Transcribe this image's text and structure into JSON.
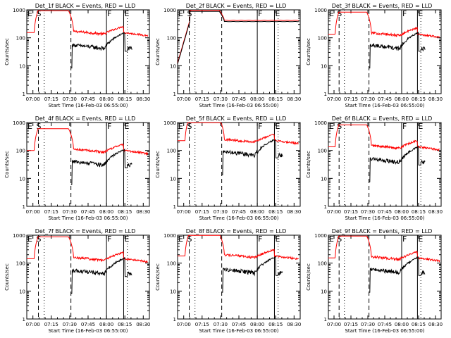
{
  "chart_data": [
    {
      "type": "line",
      "title": "Det_1f BLACK = Events, RED = LLD",
      "xlabel": "Start Time (16-Feb-03 06:55:00)",
      "ylabel": "Counts/sec",
      "yscale": "log",
      "ylim": [
        1,
        1000
      ],
      "x_ticks": [
        "07:00",
        "07:15",
        "07:30",
        "07:45",
        "08:00",
        "08:15",
        "08:30"
      ],
      "y_ticks": [
        "1",
        "10",
        "100",
        "1000"
      ],
      "flags": {
        "E": "E",
        "S": "S",
        "F": "F"
      },
      "series": [
        {
          "name": "LLD",
          "color": "#ff0000",
          "profile": "A",
          "base": 170
        },
        {
          "name": "Events",
          "color": "#000000",
          "profile": "B",
          "base": 55
        }
      ]
    },
    {
      "type": "line",
      "title": "Det_2f BLACK = Events, RED = LLD",
      "xlabel": "Start Time (16-Feb-03 06:55:00)",
      "ylabel": "Counts/sec",
      "yscale": "log",
      "ylim": [
        1,
        1000
      ],
      "x_ticks": [
        "07:00",
        "07:15",
        "07:30",
        "07:45",
        "08:00",
        "08:15",
        "08:30"
      ],
      "y_ticks": [
        "1",
        "10",
        "100",
        "1000"
      ],
      "flags": {
        "E": "E",
        "S": "S",
        "F": "F"
      },
      "series": [
        {
          "name": "LLD",
          "color": "#ff0000",
          "profile": "flat",
          "base": 420
        },
        {
          "name": "Events",
          "color": "#000000",
          "profile": "flat",
          "base": 380
        }
      ]
    },
    {
      "type": "line",
      "title": "Det_3f BLACK = Events, RED = LLD",
      "xlabel": "Start Time (16-Feb-03 06:55:00)",
      "ylabel": "Counts/sec",
      "yscale": "log",
      "ylim": [
        1,
        1000
      ],
      "x_ticks": [
        "07:00",
        "07:15",
        "07:30",
        "07:45",
        "08:00",
        "08:15",
        "08:30"
      ],
      "y_ticks": [
        "1",
        "10",
        "100",
        "1000"
      ],
      "flags": {
        "E": "E",
        "S": "S",
        "F": "F"
      },
      "series": [
        {
          "name": "LLD",
          "color": "#ff0000",
          "profile": "A",
          "base": 150
        },
        {
          "name": "Events",
          "color": "#000000",
          "profile": "B",
          "base": 55
        }
      ]
    },
    {
      "type": "line",
      "title": "Det_4f BLACK = Events, RED = LLD",
      "xlabel": "Start Time (16-Feb-03 06:55:00)",
      "ylabel": "Counts/sec",
      "yscale": "log",
      "ylim": [
        1,
        1000
      ],
      "x_ticks": [
        "07:00",
        "07:15",
        "07:30",
        "07:45",
        "08:00",
        "08:15",
        "08:30"
      ],
      "y_ticks": [
        "1",
        "10",
        "100",
        "1000"
      ],
      "flags": {
        "E": "E",
        "S": "S",
        "F": "F"
      },
      "series": [
        {
          "name": "LLD",
          "color": "#ff0000",
          "profile": "A",
          "base": 110
        },
        {
          "name": "Events",
          "color": "#000000",
          "profile": "B",
          "base": 40
        }
      ]
    },
    {
      "type": "line",
      "title": "Det_5f BLACK = Events, RED = LLD",
      "xlabel": "Start Time (16-Feb-03 06:55:00)",
      "ylabel": "Counts/sec",
      "yscale": "log",
      "ylim": [
        1,
        1000
      ],
      "x_ticks": [
        "07:00",
        "07:15",
        "07:30",
        "07:45",
        "08:00",
        "08:15",
        "08:30"
      ],
      "y_ticks": [
        "1",
        "10",
        "100",
        "1000"
      ],
      "flags": {
        "E": "E",
        "S": "S",
        "F": "F"
      },
      "series": [
        {
          "name": "LLD",
          "color": "#ff0000",
          "profile": "A",
          "base": 250
        },
        {
          "name": "Events",
          "color": "#000000",
          "profile": "B",
          "base": 90
        }
      ]
    },
    {
      "type": "line",
      "title": "Det_6f BLACK = Events, RED = LLD",
      "xlabel": "Start Time (16-Feb-03 06:55:00)",
      "ylabel": "Counts/sec",
      "yscale": "log",
      "ylim": [
        1,
        1000
      ],
      "x_ticks": [
        "07:00",
        "07:15",
        "07:30",
        "07:45",
        "08:00",
        "08:15",
        "08:30"
      ],
      "y_ticks": [
        "1",
        "10",
        "100",
        "1000"
      ],
      "flags": {
        "E": "E",
        "S": "S",
        "F": "F"
      },
      "series": [
        {
          "name": "LLD",
          "color": "#ff0000",
          "profile": "A",
          "base": 150
        },
        {
          "name": "Events",
          "color": "#000000",
          "profile": "B",
          "base": 50
        }
      ]
    },
    {
      "type": "line",
      "title": "Det_7f BLACK = Events, RED = LLD",
      "xlabel": "Start Time (16-Feb-03 06:55:00)",
      "ylabel": "Counts/sec",
      "yscale": "log",
      "ylim": [
        1,
        1000
      ],
      "x_ticks": [
        "07:00",
        "07:15",
        "07:30",
        "07:45",
        "08:00",
        "08:15",
        "08:30"
      ],
      "y_ticks": [
        "1",
        "10",
        "100",
        "1000"
      ],
      "flags": {
        "E": "E",
        "S": "S",
        "F": "F"
      },
      "series": [
        {
          "name": "LLD",
          "color": "#ff0000",
          "profile": "A",
          "base": 160
        },
        {
          "name": "Events",
          "color": "#000000",
          "profile": "B",
          "base": 55
        }
      ]
    },
    {
      "type": "line",
      "title": "Det_8f BLACK = Events, RED = LLD",
      "xlabel": "Start Time (16-Feb-03 06:55:00)",
      "ylabel": "Counts/sec",
      "yscale": "log",
      "ylim": [
        1,
        1000
      ],
      "x_ticks": [
        "07:00",
        "07:15",
        "07:30",
        "07:45",
        "08:00",
        "08:15",
        "08:30"
      ],
      "y_ticks": [
        "1",
        "10",
        "100",
        "1000"
      ],
      "flags": {
        "E": "E",
        "S": "S",
        "F": "F"
      },
      "series": [
        {
          "name": "LLD",
          "color": "#ff0000",
          "profile": "A",
          "base": 200
        },
        {
          "name": "Events",
          "color": "#000000",
          "profile": "B",
          "base": 60
        }
      ]
    },
    {
      "type": "line",
      "title": "Det_9f BLACK = Events, RED = LLD",
      "xlabel": "Start Time (16-Feb-03 06:55:00)",
      "ylabel": "Counts/sec",
      "yscale": "log",
      "ylim": [
        1,
        1000
      ],
      "x_ticks": [
        "07:00",
        "07:15",
        "07:30",
        "07:45",
        "08:00",
        "08:15",
        "08:30"
      ],
      "y_ticks": [
        "1",
        "10",
        "100",
        "1000"
      ],
      "flags": {
        "E": "E",
        "S": "S",
        "F": "F"
      },
      "series": [
        {
          "name": "LLD",
          "color": "#ff0000",
          "profile": "A",
          "base": 170
        },
        {
          "name": "Events",
          "color": "#000000",
          "profile": "B",
          "base": 60
        }
      ]
    }
  ]
}
